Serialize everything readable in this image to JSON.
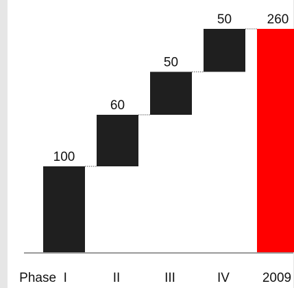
{
  "chart_data": {
    "type": "bar",
    "subtype": "waterfall",
    "title": "",
    "xlabel": "",
    "ylabel": "",
    "categories": [
      "Phase  I",
      "II",
      "III",
      "IV",
      "2009"
    ],
    "values": [
      100,
      60,
      50,
      50,
      260
    ],
    "value_labels": [
      "100",
      "60",
      "50",
      "50",
      "260"
    ],
    "bar_kind": [
      "increment",
      "increment",
      "increment",
      "increment",
      "total"
    ],
    "ylim": [
      0,
      260
    ],
    "grid": false,
    "legend": "none",
    "colors": {
      "increment": "#1f1f1f",
      "total": "#ff0000",
      "connector": "#888888",
      "axis": "#999999",
      "frame": "#e6e6e6"
    }
  }
}
